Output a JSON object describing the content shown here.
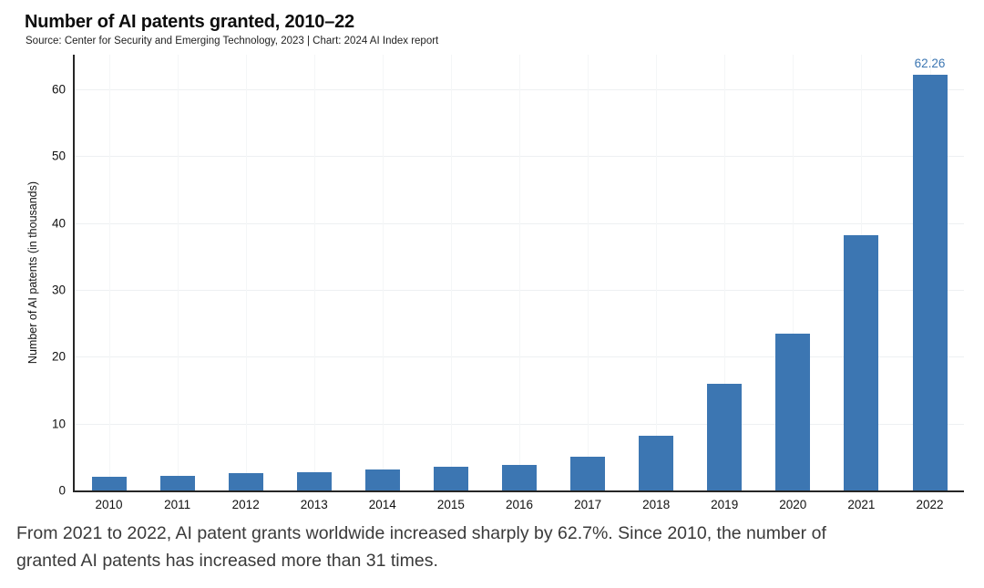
{
  "header": {
    "title": "Number of AI patents granted, 2010–22",
    "subtitle": "Source: Center for Security and Emerging Technology, 2023 | Chart: 2024 AI Index report"
  },
  "chart_data": {
    "type": "bar",
    "title": "Number of AI patents granted, 2010–22",
    "source_note": "Source: Center for Security and Emerging Technology, 2023 | Chart: 2024 AI Index report",
    "xlabel": "",
    "ylabel": "Number of AI patents (in thousands)",
    "categories": [
      "2010",
      "2011",
      "2012",
      "2013",
      "2014",
      "2015",
      "2016",
      "2017",
      "2018",
      "2019",
      "2020",
      "2021",
      "2022"
    ],
    "values": [
      2.0,
      2.2,
      2.6,
      2.7,
      3.1,
      3.5,
      3.8,
      5.1,
      8.2,
      15.9,
      23.4,
      38.26,
      62.26
    ],
    "data_labels": {
      "2022": "62.26"
    },
    "yticks": [
      0,
      10,
      20,
      30,
      40,
      50,
      60
    ],
    "ylim": [
      0,
      65.2
    ],
    "grid": true,
    "legend_position": "none",
    "bar_color": "#3c76b2",
    "value_label_color": "#3c76b2"
  },
  "caption": {
    "line1": "From 2021 to 2022, AI patent grants worldwide increased sharply by 62.7%. Since 2010, the number of",
    "line2": "granted AI patents has increased more than 31 times."
  },
  "colors": {
    "bar": "#3c76b2",
    "axis_line": "#262626",
    "gridline_horizontal": "#eef0f2",
    "gridline_vertical": "#f4f6f7",
    "title_text": "#0d0d0d",
    "caption_text": "#3a3a3a"
  }
}
